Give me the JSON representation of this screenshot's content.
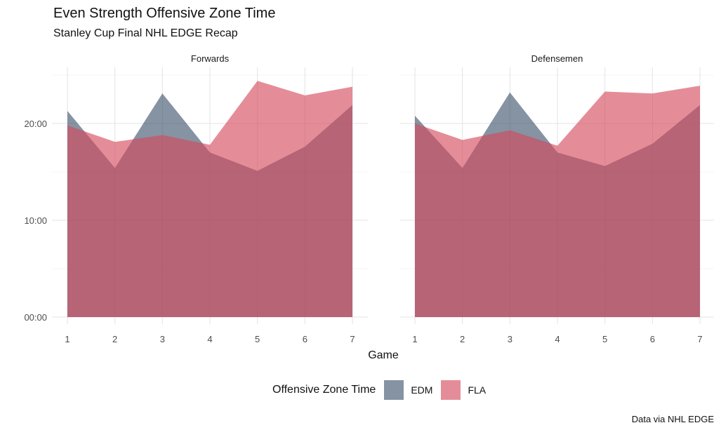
{
  "title": "Even Strength Offensive Zone Time",
  "subtitle": "Stanley Cup Final NHL EDGE Recap",
  "caption": "Data via NHL EDGE",
  "legend": {
    "title": "Offensive Zone Time",
    "items": [
      {
        "label": "EDM",
        "color": "#3B5069"
      },
      {
        "label": "FLA",
        "color": "#D4475B"
      }
    ]
  },
  "chart_data": {
    "type": "area",
    "xlabel": "Game",
    "ylabel": "",
    "x": [
      1,
      2,
      3,
      4,
      5,
      6,
      7
    ],
    "y_unit": "minutes",
    "ylim": [
      0,
      25
    ],
    "yticks": [
      0,
      10,
      20
    ],
    "ytick_labels": [
      "00:00",
      "10:00",
      "20:00"
    ],
    "grid": true,
    "legend_position": "bottom",
    "panels": [
      {
        "name": "Forwards",
        "series": [
          {
            "name": "EDM",
            "values": [
              21.3,
              15.4,
              23.1,
              17.0,
              15.1,
              17.6,
              21.9
            ]
          },
          {
            "name": "FLA",
            "values": [
              19.8,
              18.1,
              18.8,
              17.8,
              24.4,
              22.9,
              23.8
            ]
          }
        ]
      },
      {
        "name": "Defensemen",
        "series": [
          {
            "name": "EDM",
            "values": [
              20.8,
              15.4,
              23.2,
              17.0,
              15.6,
              17.9,
              21.9
            ]
          },
          {
            "name": "FLA",
            "values": [
              20.0,
              18.3,
              19.3,
              17.7,
              23.3,
              23.1,
              23.9
            ]
          }
        ]
      }
    ]
  }
}
